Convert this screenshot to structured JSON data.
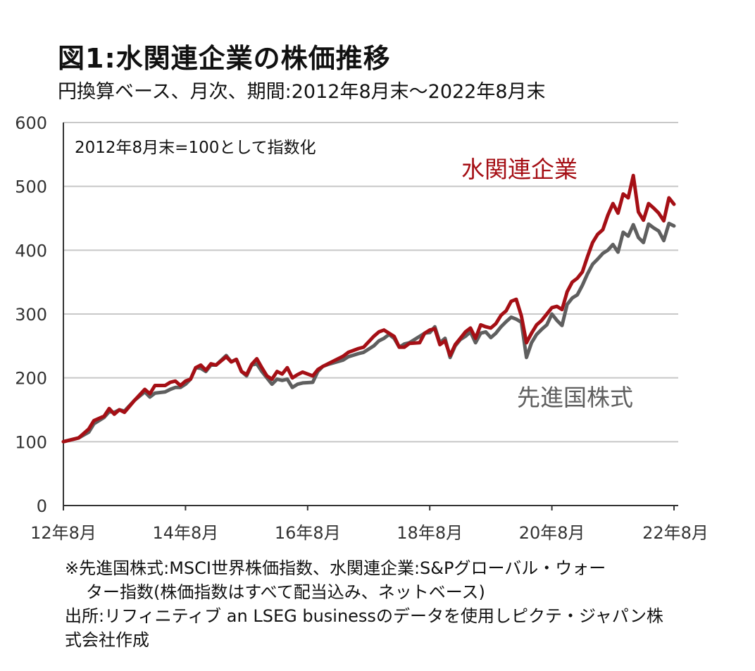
{
  "header": {
    "title": "図1:水関連企業の株価推移",
    "subtitle": "円換算ベース、月次、期間:2012年8月末～2022年8月末"
  },
  "chart_data": {
    "type": "line",
    "annotation": "2012年8月末=100として指数化",
    "y_ticks": [
      "0",
      "100",
      "200",
      "300",
      "400",
      "500",
      "600"
    ],
    "ylim": [
      0,
      600
    ],
    "x_ticks": [
      "12年8月",
      "14年8月",
      "16年8月",
      "18年8月",
      "20年8月",
      "22年8月"
    ],
    "xlim": [
      "2012-08",
      "2022-08"
    ],
    "grid": true,
    "series": [
      {
        "name": "水関連企業",
        "color": "#a50f15",
        "points": [
          [
            "2012-08",
            100
          ],
          [
            "2012-11",
            106
          ],
          [
            "2013-01",
            120
          ],
          [
            "2013-02",
            133
          ],
          [
            "2013-04",
            140
          ],
          [
            "2013-05",
            152
          ],
          [
            "2013-06",
            143
          ],
          [
            "2013-07",
            150
          ],
          [
            "2013-08",
            146
          ],
          [
            "2013-10",
            165
          ],
          [
            "2013-12",
            182
          ],
          [
            "2014-01",
            175
          ],
          [
            "2014-02",
            188
          ],
          [
            "2014-04",
            188
          ],
          [
            "2014-05",
            193
          ],
          [
            "2014-06",
            195
          ],
          [
            "2014-07",
            188
          ],
          [
            "2014-08",
            195
          ],
          [
            "2014-09",
            198
          ],
          [
            "2014-10",
            216
          ],
          [
            "2014-11",
            220
          ],
          [
            "2014-12",
            212
          ],
          [
            "2015-01",
            222
          ],
          [
            "2015-02",
            220
          ],
          [
            "2015-04",
            233
          ],
          [
            "2015-05",
            225
          ],
          [
            "2015-06",
            229
          ],
          [
            "2015-07",
            210
          ],
          [
            "2015-08",
            205
          ],
          [
            "2015-09",
            221
          ],
          [
            "2015-10",
            230
          ],
          [
            "2015-11",
            216
          ],
          [
            "2015-12",
            203
          ],
          [
            "2016-01",
            198
          ],
          [
            "2016-02",
            210
          ],
          [
            "2016-03",
            206
          ],
          [
            "2016-04",
            216
          ],
          [
            "2016-05",
            200
          ],
          [
            "2016-06",
            205
          ],
          [
            "2016-07",
            209
          ],
          [
            "2016-09",
            203
          ],
          [
            "2016-10",
            213
          ],
          [
            "2016-11",
            218
          ],
          [
            "2016-12",
            222
          ],
          [
            "2017-03",
            234
          ],
          [
            "2017-04",
            240
          ],
          [
            "2017-06",
            246
          ],
          [
            "2017-07",
            248
          ],
          [
            "2017-09",
            265
          ],
          [
            "2017-10",
            272
          ],
          [
            "2017-11",
            275
          ],
          [
            "2017-12",
            270
          ],
          [
            "2018-01",
            265
          ],
          [
            "2018-02",
            248
          ],
          [
            "2018-03",
            248
          ],
          [
            "2018-04",
            254
          ],
          [
            "2018-06",
            255
          ],
          [
            "2018-07",
            270
          ],
          [
            "2018-08",
            275
          ],
          [
            "2018-09",
            277
          ],
          [
            "2018-10",
            252
          ],
          [
            "2018-11",
            258
          ],
          [
            "2018-12",
            235
          ],
          [
            "2019-01",
            252
          ],
          [
            "2019-02",
            262
          ],
          [
            "2019-03",
            272
          ],
          [
            "2019-04",
            278
          ],
          [
            "2019-05",
            262
          ],
          [
            "2019-06",
            283
          ],
          [
            "2019-07",
            280
          ],
          [
            "2019-08",
            278
          ],
          [
            "2019-09",
            285
          ],
          [
            "2019-10",
            298
          ],
          [
            "2019-11",
            305
          ],
          [
            "2019-12",
            320
          ],
          [
            "2020-01",
            323
          ],
          [
            "2020-02",
            297
          ],
          [
            "2020-03",
            255
          ],
          [
            "2020-04",
            270
          ],
          [
            "2020-05",
            283
          ],
          [
            "2020-06",
            290
          ],
          [
            "2020-07",
            300
          ],
          [
            "2020-08",
            310
          ],
          [
            "2020-09",
            312
          ],
          [
            "2020-10",
            307
          ],
          [
            "2020-11",
            335
          ],
          [
            "2020-12",
            350
          ],
          [
            "2021-01",
            356
          ],
          [
            "2021-02",
            366
          ],
          [
            "2021-03",
            390
          ],
          [
            "2021-04",
            412
          ],
          [
            "2021-05",
            425
          ],
          [
            "2021-06",
            432
          ],
          [
            "2021-07",
            455
          ],
          [
            "2021-08",
            473
          ],
          [
            "2021-09",
            458
          ],
          [
            "2021-10",
            488
          ],
          [
            "2021-11",
            482
          ],
          [
            "2021-12",
            517
          ],
          [
            "2022-01",
            460
          ],
          [
            "2022-02",
            447
          ],
          [
            "2022-03",
            473
          ],
          [
            "2022-04",
            466
          ],
          [
            "2022-05",
            458
          ],
          [
            "2022-06",
            446
          ],
          [
            "2022-07",
            482
          ],
          [
            "2022-08",
            472
          ]
        ]
      },
      {
        "name": "先進国株式",
        "color": "#5f5f5f",
        "points": [
          [
            "2012-08",
            100
          ],
          [
            "2012-11",
            106
          ],
          [
            "2013-01",
            115
          ],
          [
            "2013-02",
            128
          ],
          [
            "2013-04",
            138
          ],
          [
            "2013-05",
            147
          ],
          [
            "2013-06",
            146
          ],
          [
            "2013-07",
            150
          ],
          [
            "2013-08",
            148
          ],
          [
            "2013-10",
            165
          ],
          [
            "2013-12",
            178
          ],
          [
            "2014-01",
            170
          ],
          [
            "2014-02",
            176
          ],
          [
            "2014-04",
            178
          ],
          [
            "2014-05",
            182
          ],
          [
            "2014-06",
            185
          ],
          [
            "2014-07",
            185
          ],
          [
            "2014-08",
            190
          ],
          [
            "2014-09",
            198
          ],
          [
            "2014-10",
            216
          ],
          [
            "2014-11",
            215
          ],
          [
            "2014-12",
            210
          ],
          [
            "2015-01",
            220
          ],
          [
            "2015-02",
            220
          ],
          [
            "2015-04",
            235
          ],
          [
            "2015-05",
            225
          ],
          [
            "2015-06",
            229
          ],
          [
            "2015-07",
            210
          ],
          [
            "2015-08",
            203
          ],
          [
            "2015-09",
            220
          ],
          [
            "2015-10",
            222
          ],
          [
            "2015-11",
            210
          ],
          [
            "2015-12",
            200
          ],
          [
            "2016-01",
            190
          ],
          [
            "2016-02",
            198
          ],
          [
            "2016-03",
            196
          ],
          [
            "2016-04",
            198
          ],
          [
            "2016-05",
            185
          ],
          [
            "2016-06",
            190
          ],
          [
            "2016-07",
            192
          ],
          [
            "2016-09",
            193
          ],
          [
            "2016-10",
            210
          ],
          [
            "2016-11",
            218
          ],
          [
            "2016-12",
            221
          ],
          [
            "2017-03",
            228
          ],
          [
            "2017-04",
            233
          ],
          [
            "2017-06",
            238
          ],
          [
            "2017-07",
            240
          ],
          [
            "2017-09",
            250
          ],
          [
            "2017-10",
            258
          ],
          [
            "2017-11",
            262
          ],
          [
            "2017-12",
            268
          ],
          [
            "2018-01",
            262
          ],
          [
            "2018-02",
            248
          ],
          [
            "2018-03",
            253
          ],
          [
            "2018-04",
            255
          ],
          [
            "2018-06",
            265
          ],
          [
            "2018-07",
            270
          ],
          [
            "2018-08",
            271
          ],
          [
            "2018-09",
            280
          ],
          [
            "2018-10",
            255
          ],
          [
            "2018-11",
            262
          ],
          [
            "2018-12",
            232
          ],
          [
            "2019-01",
            250
          ],
          [
            "2019-02",
            260
          ],
          [
            "2019-03",
            265
          ],
          [
            "2019-04",
            272
          ],
          [
            "2019-05",
            255
          ],
          [
            "2019-06",
            270
          ],
          [
            "2019-07",
            272
          ],
          [
            "2019-08",
            263
          ],
          [
            "2019-09",
            270
          ],
          [
            "2019-10",
            280
          ],
          [
            "2019-11",
            288
          ],
          [
            "2019-12",
            295
          ],
          [
            "2020-01",
            292
          ],
          [
            "2020-02",
            287
          ],
          [
            "2020-03",
            232
          ],
          [
            "2020-04",
            255
          ],
          [
            "2020-05",
            268
          ],
          [
            "2020-06",
            276
          ],
          [
            "2020-07",
            283
          ],
          [
            "2020-08",
            300
          ],
          [
            "2020-09",
            290
          ],
          [
            "2020-10",
            282
          ],
          [
            "2020-11",
            315
          ],
          [
            "2020-12",
            325
          ],
          [
            "2021-01",
            330
          ],
          [
            "2021-02",
            345
          ],
          [
            "2021-03",
            363
          ],
          [
            "2021-04",
            378
          ],
          [
            "2021-05",
            386
          ],
          [
            "2021-06",
            395
          ],
          [
            "2021-07",
            400
          ],
          [
            "2021-08",
            409
          ],
          [
            "2021-09",
            397
          ],
          [
            "2021-10",
            428
          ],
          [
            "2021-11",
            422
          ],
          [
            "2021-12",
            440
          ],
          [
            "2022-01",
            420
          ],
          [
            "2022-02",
            412
          ],
          [
            "2022-03",
            441
          ],
          [
            "2022-04",
            435
          ],
          [
            "2022-05",
            430
          ],
          [
            "2022-06",
            415
          ],
          [
            "2022-07",
            442
          ],
          [
            "2022-08",
            438
          ]
        ]
      }
    ]
  },
  "footnotes": {
    "line1": "※先進国株式:MSCI世界株価指数、水関連企業:S&Pグローバル・ウォー",
    "line2": "ター指数(株価指数はすべて配当込み、ネットベース)",
    "line3": "出所:リフィニティブ an LSEG businessのデータを使用しピクテ・ジャパン株",
    "line4": "式会社作成"
  }
}
